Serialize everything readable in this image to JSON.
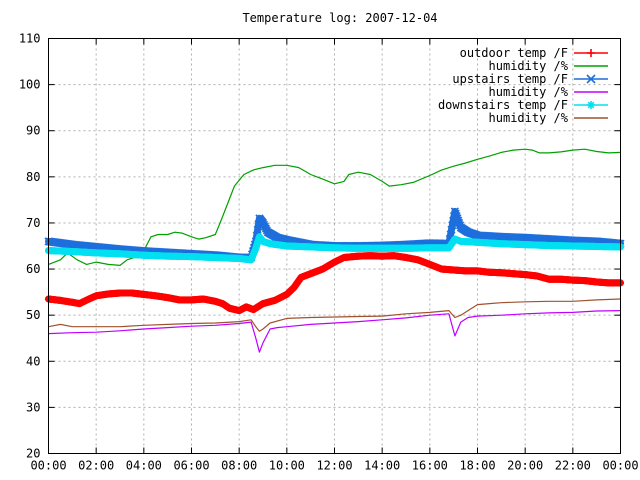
{
  "chart_data": {
    "type": "line",
    "title": "Temperature log: 2007-12-04",
    "xlabel": "",
    "ylabel": "",
    "xlim": [
      0,
      24
    ],
    "ylim": [
      20,
      110
    ],
    "grid": true,
    "legend_position": "top-right",
    "x_ticks": [
      {
        "value": 0,
        "label": "00:00"
      },
      {
        "value": 2,
        "label": "02:00"
      },
      {
        "value": 4,
        "label": "04:00"
      },
      {
        "value": 6,
        "label": "06:00"
      },
      {
        "value": 8,
        "label": "08:00"
      },
      {
        "value": 10,
        "label": "10:00"
      },
      {
        "value": 12,
        "label": "12:00"
      },
      {
        "value": 14,
        "label": "14:00"
      },
      {
        "value": 16,
        "label": "16:00"
      },
      {
        "value": 18,
        "label": "18:00"
      },
      {
        "value": 20,
        "label": "20:00"
      },
      {
        "value": 22,
        "label": "22:00"
      },
      {
        "value": 24,
        "label": "00:00"
      }
    ],
    "y_ticks": [
      {
        "value": 20,
        "label": "20"
      },
      {
        "value": 30,
        "label": "30"
      },
      {
        "value": 40,
        "label": "40"
      },
      {
        "value": 50,
        "label": "50"
      },
      {
        "value": 60,
        "label": "60"
      },
      {
        "value": 70,
        "label": "70"
      },
      {
        "value": 80,
        "label": "80"
      },
      {
        "value": 90,
        "label": "90"
      },
      {
        "value": 100,
        "label": "100"
      },
      {
        "value": 110,
        "label": "110"
      }
    ],
    "series": [
      {
        "name": "outdoor temp /F",
        "color": "#ff0000",
        "marker": "plus",
        "style": "thick",
        "points": [
          [
            0,
            53.5
          ],
          [
            0.5,
            53.2
          ],
          [
            1,
            52.8
          ],
          [
            1.3,
            52.5
          ],
          [
            1.7,
            53.5
          ],
          [
            2,
            54.2
          ],
          [
            2.5,
            54.6
          ],
          [
            3,
            54.8
          ],
          [
            3.5,
            54.8
          ],
          [
            4,
            54.5
          ],
          [
            4.5,
            54.2
          ],
          [
            5,
            53.8
          ],
          [
            5.5,
            53.3
          ],
          [
            6,
            53.3
          ],
          [
            6.5,
            53.5
          ],
          [
            7,
            53
          ],
          [
            7.3,
            52.5
          ],
          [
            7.6,
            51.5
          ],
          [
            8,
            51
          ],
          [
            8.3,
            51.8
          ],
          [
            8.6,
            51.2
          ],
          [
            9,
            52.5
          ],
          [
            9.5,
            53.2
          ],
          [
            10,
            54.5
          ],
          [
            10.3,
            56
          ],
          [
            10.6,
            58.2
          ],
          [
            11,
            59
          ],
          [
            11.5,
            60
          ],
          [
            12,
            61.5
          ],
          [
            12.4,
            62.5
          ],
          [
            13,
            62.8
          ],
          [
            13.5,
            62.9
          ],
          [
            14,
            62.8
          ],
          [
            14.5,
            62.9
          ],
          [
            15,
            62.5
          ],
          [
            15.5,
            62
          ],
          [
            16,
            61
          ],
          [
            16.5,
            60
          ],
          [
            17,
            59.8
          ],
          [
            17.5,
            59.6
          ],
          [
            18,
            59.6
          ],
          [
            18.5,
            59.3
          ],
          [
            19,
            59.2
          ],
          [
            19.5,
            59
          ],
          [
            20,
            58.8
          ],
          [
            20.5,
            58.5
          ],
          [
            21,
            57.8
          ],
          [
            21.5,
            57.8
          ],
          [
            22,
            57.6
          ],
          [
            22.5,
            57.5
          ],
          [
            23,
            57.2
          ],
          [
            23.5,
            57
          ],
          [
            24,
            57
          ]
        ]
      },
      {
        "name": "humidity /%",
        "color": "#00a000",
        "marker": "none",
        "style": "line",
        "points": [
          [
            0,
            61
          ],
          [
            0.5,
            62
          ],
          [
            0.8,
            63.5
          ],
          [
            1.2,
            62
          ],
          [
            1.6,
            61
          ],
          [
            2,
            61.5
          ],
          [
            2.5,
            61
          ],
          [
            3,
            60.8
          ],
          [
            3.3,
            62
          ],
          [
            3.6,
            62.5
          ],
          [
            4,
            64
          ],
          [
            4.3,
            67
          ],
          [
            4.6,
            67.5
          ],
          [
            5,
            67.5
          ],
          [
            5.3,
            68
          ],
          [
            5.6,
            67.8
          ],
          [
            6,
            67
          ],
          [
            6.3,
            66.5
          ],
          [
            6.6,
            66.8
          ],
          [
            7,
            67.5
          ],
          [
            7.2,
            70
          ],
          [
            7.5,
            74
          ],
          [
            7.8,
            78
          ],
          [
            8.2,
            80.5
          ],
          [
            8.6,
            81.5
          ],
          [
            9,
            82
          ],
          [
            9.5,
            82.5
          ],
          [
            10,
            82.5
          ],
          [
            10.5,
            82
          ],
          [
            11,
            80.5
          ],
          [
            11.5,
            79.5
          ],
          [
            12,
            78.5
          ],
          [
            12.4,
            79
          ],
          [
            12.6,
            80.5
          ],
          [
            13,
            81
          ],
          [
            13.5,
            80.5
          ],
          [
            14,
            79
          ],
          [
            14.3,
            78
          ],
          [
            14.8,
            78.3
          ],
          [
            15.3,
            78.8
          ],
          [
            16,
            80.3
          ],
          [
            16.5,
            81.5
          ],
          [
            17,
            82.3
          ],
          [
            17.5,
            83
          ],
          [
            18,
            83.8
          ],
          [
            18.5,
            84.5
          ],
          [
            19,
            85.3
          ],
          [
            19.5,
            85.8
          ],
          [
            20,
            86
          ],
          [
            20.3,
            85.8
          ],
          [
            20.6,
            85.2
          ],
          [
            21,
            85.2
          ],
          [
            21.5,
            85.4
          ],
          [
            22,
            85.8
          ],
          [
            22.5,
            86
          ],
          [
            23,
            85.5
          ],
          [
            23.5,
            85.2
          ],
          [
            24,
            85.3
          ]
        ]
      },
      {
        "name": "upstairs temp /F",
        "color": "#1e6fdc",
        "marker": "cross",
        "style": "thick",
        "points": [
          [
            0,
            66
          ],
          [
            1,
            65.3
          ],
          [
            2,
            64.8
          ],
          [
            3,
            64.3
          ],
          [
            4,
            63.9
          ],
          [
            5,
            63.6
          ],
          [
            6,
            63.3
          ],
          [
            7,
            63
          ],
          [
            8,
            62.5
          ],
          [
            8.5,
            62.5
          ],
          [
            8.7,
            66
          ],
          [
            8.85,
            71
          ],
          [
            9,
            70
          ],
          [
            9.2,
            68
          ],
          [
            9.6,
            66.8
          ],
          [
            10,
            66.3
          ],
          [
            11,
            65.3
          ],
          [
            12,
            65
          ],
          [
            13,
            65
          ],
          [
            14,
            65.1
          ],
          [
            15,
            65.3
          ],
          [
            16,
            65.6
          ],
          [
            16.8,
            65.5
          ],
          [
            17.05,
            72.5
          ],
          [
            17.3,
            69
          ],
          [
            17.6,
            68
          ],
          [
            18,
            67.3
          ],
          [
            19,
            67
          ],
          [
            20,
            66.8
          ],
          [
            21,
            66.5
          ],
          [
            22,
            66.2
          ],
          [
            23,
            66
          ],
          [
            24,
            65.5
          ]
        ]
      },
      {
        "name": "humidity /%",
        "color": "#c000ff",
        "marker": "none",
        "style": "line",
        "points": [
          [
            0,
            46
          ],
          [
            1,
            46.2
          ],
          [
            2,
            46.3
          ],
          [
            3,
            46.6
          ],
          [
            4,
            47
          ],
          [
            5,
            47.3
          ],
          [
            6,
            47.6
          ],
          [
            7,
            47.8
          ],
          [
            8,
            48.2
          ],
          [
            8.5,
            48.5
          ],
          [
            8.7,
            45
          ],
          [
            8.85,
            42
          ],
          [
            9,
            44
          ],
          [
            9.3,
            47
          ],
          [
            9.6,
            47.3
          ],
          [
            10,
            47.5
          ],
          [
            11,
            48
          ],
          [
            12,
            48.3
          ],
          [
            13,
            48.6
          ],
          [
            14,
            49
          ],
          [
            15,
            49.4
          ],
          [
            16,
            50
          ],
          [
            16.8,
            50.3
          ],
          [
            17.05,
            45.5
          ],
          [
            17.3,
            48.5
          ],
          [
            17.6,
            49.5
          ],
          [
            18,
            49.8
          ],
          [
            19,
            50
          ],
          [
            20,
            50.3
          ],
          [
            21,
            50.5
          ],
          [
            22,
            50.6
          ],
          [
            23,
            50.9
          ],
          [
            24,
            51
          ]
        ]
      },
      {
        "name": "downstairs temp /F",
        "color": "#00e0f0",
        "marker": "star",
        "style": "thick",
        "points": [
          [
            0,
            64
          ],
          [
            1,
            63.8
          ],
          [
            2,
            63.5
          ],
          [
            3,
            63.3
          ],
          [
            4,
            63
          ],
          [
            5,
            62.8
          ],
          [
            6,
            62.7
          ],
          [
            7,
            62.5
          ],
          [
            8,
            62.3
          ],
          [
            8.5,
            62
          ],
          [
            8.7,
            64.5
          ],
          [
            8.85,
            67
          ],
          [
            9,
            66
          ],
          [
            9.3,
            65.5
          ],
          [
            10,
            65
          ],
          [
            11,
            64.8
          ],
          [
            12,
            64.6
          ],
          [
            13,
            64.5
          ],
          [
            14,
            64.5
          ],
          [
            15,
            64.5
          ],
          [
            16,
            64.6
          ],
          [
            16.8,
            64.6
          ],
          [
            17.05,
            66.5
          ],
          [
            17.3,
            66
          ],
          [
            18,
            65.8
          ],
          [
            19,
            65.5
          ],
          [
            20,
            65.3
          ],
          [
            21,
            65.1
          ],
          [
            22,
            65
          ],
          [
            23,
            64.9
          ],
          [
            24,
            64.8
          ]
        ]
      },
      {
        "name": "humidity /%",
        "color": "#a0522d",
        "marker": "none",
        "style": "line",
        "points": [
          [
            0,
            47.5
          ],
          [
            0.5,
            48
          ],
          [
            1,
            47.5
          ],
          [
            2,
            47.5
          ],
          [
            3,
            47.5
          ],
          [
            4,
            47.8
          ],
          [
            5,
            48
          ],
          [
            6,
            48.2
          ],
          [
            7,
            48.3
          ],
          [
            8,
            48.6
          ],
          [
            8.5,
            49
          ],
          [
            8.7,
            47.5
          ],
          [
            8.85,
            46.5
          ],
          [
            9,
            47
          ],
          [
            9.3,
            48.3
          ],
          [
            10,
            49.3
          ],
          [
            11,
            49.5
          ],
          [
            12,
            49.6
          ],
          [
            13,
            49.7
          ],
          [
            14,
            49.8
          ],
          [
            15,
            50.3
          ],
          [
            16,
            50.6
          ],
          [
            16.8,
            51
          ],
          [
            17.05,
            49.5
          ],
          [
            17.3,
            50
          ],
          [
            17.6,
            51
          ],
          [
            18,
            52.3
          ],
          [
            18.5,
            52.5
          ],
          [
            19,
            52.7
          ],
          [
            20,
            52.9
          ],
          [
            21,
            53
          ],
          [
            22,
            53
          ],
          [
            23,
            53.3
          ],
          [
            24,
            53.5
          ]
        ]
      }
    ]
  }
}
